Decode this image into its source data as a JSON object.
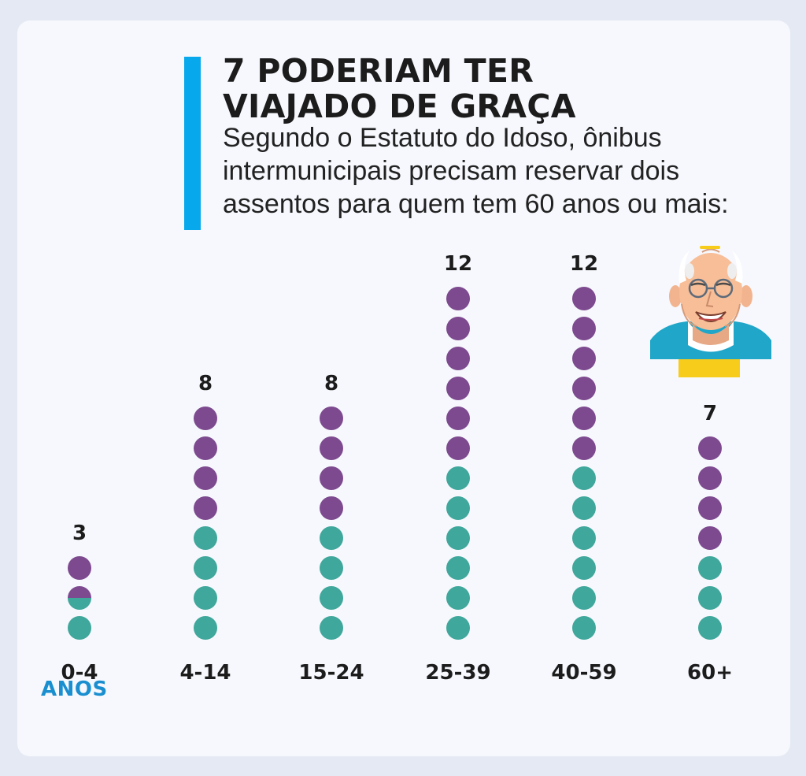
{
  "header": {
    "title_line1": "7 PODERIAM TER",
    "title_line2": "VIAJADO DE GRAÇA",
    "subtitle_line1": "Segundo o Estatuto do Idoso, ônibus",
    "subtitle_line2": "intermunicipais precisam reservar dois",
    "subtitle_line3": "assentos para quem tem 60 anos ou mais:"
  },
  "colors": {
    "purple": "#7d4a8f",
    "teal": "#3fa79b",
    "accent": "#08a9ec",
    "unit": "#1a8fd0"
  },
  "unit_label": "ANOS",
  "chart_data": {
    "type": "dot",
    "categories": [
      "0-4",
      "4-14",
      "15-24",
      "25-39",
      "40-59",
      "60+"
    ],
    "totals": [
      3,
      8,
      8,
      12,
      12,
      7
    ],
    "teal_counts": [
      1.5,
      4,
      4,
      6,
      6,
      3
    ],
    "purple_counts": [
      1.5,
      4,
      4,
      6,
      6,
      4
    ],
    "total_labels": [
      "3",
      "8",
      "8",
      "12",
      "12",
      "7"
    ]
  },
  "icon": "elderly-man-icon"
}
